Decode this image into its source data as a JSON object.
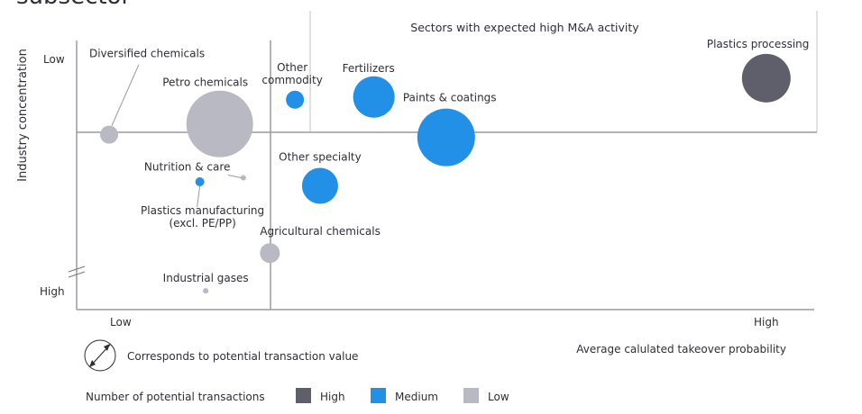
{
  "chart_data": {
    "type": "scatter",
    "title": "subsector",
    "xlabel": "Average calulated takeover probability",
    "ylabel": "Industry concentration",
    "x_ticks": [
      "Low",
      "High"
    ],
    "y_ticks": [
      "Low",
      "High"
    ],
    "xlim": [
      0,
      100
    ],
    "ylim": [
      0,
      100
    ],
    "y_inverted_note": "",
    "quadrant_label": "Sectors with expected high M&A activity",
    "size_legend": "Corresponds to potential transaction value",
    "color_legend_title": "Number of potential transactions",
    "categories": [
      {
        "name": "High",
        "color": "#5f5f6b"
      },
      {
        "name": "Medium",
        "color": "#2390e8"
      },
      {
        "name": "Low",
        "color": "#b9b9c3"
      }
    ],
    "points": [
      {
        "label": "Diversified chemicals",
        "x": 4.4,
        "y": 35,
        "size": 10,
        "category": "Low"
      },
      {
        "label": "Petro chemicals",
        "x": 19.4,
        "y": 31,
        "size": 37,
        "category": "Low"
      },
      {
        "label": "Other commodity",
        "x": 29.6,
        "y": 22,
        "size": 10,
        "category": "Medium"
      },
      {
        "label": "Fertilizers",
        "x": 40.3,
        "y": 21,
        "size": 23,
        "category": "Medium"
      },
      {
        "label": "Paints & coatings",
        "x": 50.1,
        "y": 36,
        "size": 32,
        "category": "Medium"
      },
      {
        "label": "Plastics processing",
        "x": 93.5,
        "y": 14,
        "size": 27,
        "category": "High"
      },
      {
        "label": "Other specialty",
        "x": 33.0,
        "y": 54,
        "size": 20,
        "category": "Medium"
      },
      {
        "label": "Nutrition & care",
        "x": 22.6,
        "y": 51,
        "size": 3,
        "category": "Low"
      },
      {
        "label": "Plastics manufacturing (excl. PE/PP)",
        "x": 16.7,
        "y": 52.5,
        "size": 5,
        "category": "Medium"
      },
      {
        "label": "Agricultural chemicals",
        "x": 26.2,
        "y": 79,
        "size": 11,
        "category": "Low"
      },
      {
        "label": "Industrial gases",
        "x": 17.5,
        "y": 93,
        "size": 3,
        "category": "Low"
      }
    ]
  }
}
